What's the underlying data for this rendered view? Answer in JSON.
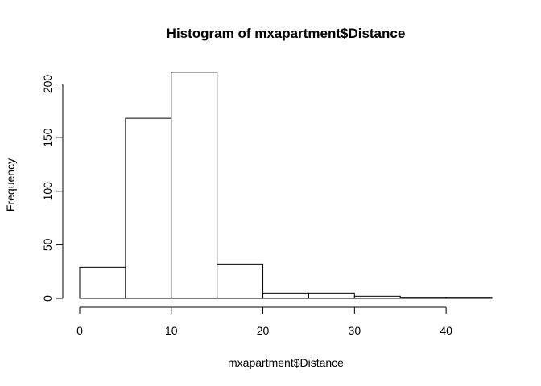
{
  "chart_data": {
    "type": "bar",
    "title": "Histogram of mxapartment$Distance",
    "xlabel": "mxapartment$Distance",
    "ylabel": "Frequency",
    "bins": [
      {
        "start": 0,
        "end": 5,
        "count": 29
      },
      {
        "start": 5,
        "end": 10,
        "count": 168
      },
      {
        "start": 10,
        "end": 15,
        "count": 211
      },
      {
        "start": 15,
        "end": 20,
        "count": 32
      },
      {
        "start": 20,
        "end": 25,
        "count": 5
      },
      {
        "start": 25,
        "end": 30,
        "count": 5
      },
      {
        "start": 30,
        "end": 35,
        "count": 2
      },
      {
        "start": 35,
        "end": 40,
        "count": 1
      },
      {
        "start": 40,
        "end": 45,
        "count": 1
      }
    ],
    "xlim": [
      0,
      45
    ],
    "ylim": [
      0,
      211
    ],
    "x_ticks": [
      0,
      10,
      20,
      30,
      40
    ],
    "y_ticks": [
      0,
      50,
      100,
      150,
      200
    ],
    "grid": false,
    "legend": "none"
  }
}
